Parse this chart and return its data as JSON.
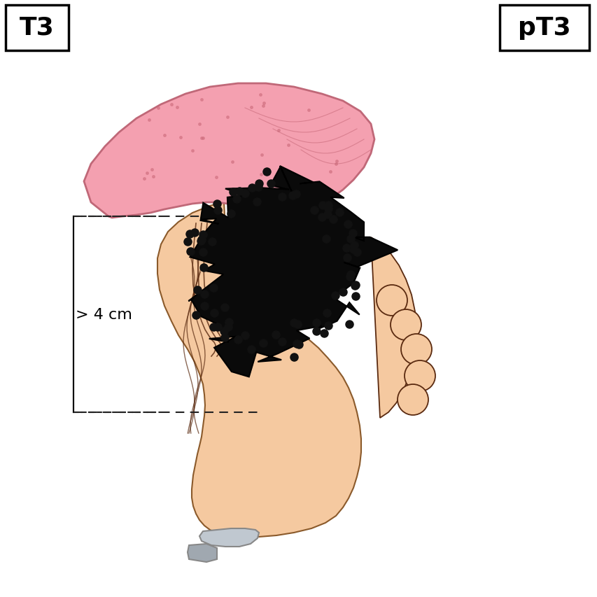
{
  "background_color": "#ffffff",
  "label_t3": "T3",
  "label_pt3": "pT3",
  "label_size_text": "> 4 cm",
  "tongue_fill": "#f4a0b0",
  "tongue_stroke": "#c06070",
  "skin_fill": "#f5c9a0",
  "skin_stroke": "#8B5A2B",
  "tumor_fill": "#0a0a0a",
  "tumor_stroke": "#000000",
  "box_stroke": "#000000",
  "dashed_color": "#222222",
  "ruler_fill": "#b0b8c0",
  "ruler_stroke": "#888888"
}
